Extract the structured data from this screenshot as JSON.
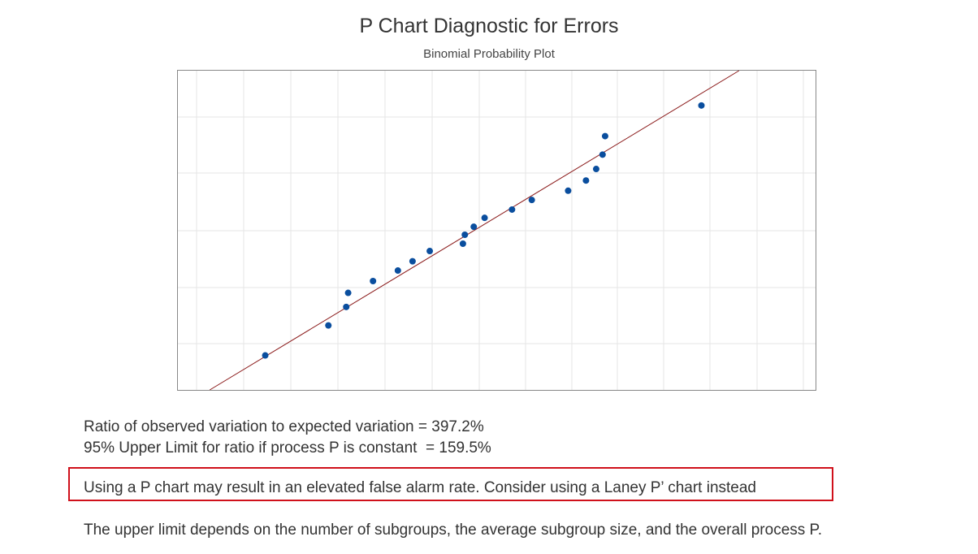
{
  "chart_data": {
    "type": "scatter",
    "title": "P Chart Diagnostic for Errors",
    "subtitle": "Binomial Probability Plot",
    "grid": true,
    "colors": {
      "points": "#0a4e9e",
      "fit_line": "#8b1a1a",
      "grid": "#e6e6e6",
      "frame": "#888888"
    },
    "xlim": [
      0,
      1
    ],
    "ylim": [
      0,
      1
    ],
    "fit_line": [
      [
        0.05,
        0.0
      ],
      [
        0.88,
        1.0
      ]
    ],
    "points": [
      {
        "x": 0.137,
        "y": 0.108
      },
      {
        "x": 0.236,
        "y": 0.202
      },
      {
        "x": 0.264,
        "y": 0.26
      },
      {
        "x": 0.267,
        "y": 0.304
      },
      {
        "x": 0.306,
        "y": 0.341
      },
      {
        "x": 0.345,
        "y": 0.374
      },
      {
        "x": 0.368,
        "y": 0.403
      },
      {
        "x": 0.395,
        "y": 0.435
      },
      {
        "x": 0.447,
        "y": 0.458
      },
      {
        "x": 0.45,
        "y": 0.486
      },
      {
        "x": 0.464,
        "y": 0.511
      },
      {
        "x": 0.481,
        "y": 0.539
      },
      {
        "x": 0.524,
        "y": 0.565
      },
      {
        "x": 0.555,
        "y": 0.595
      },
      {
        "x": 0.612,
        "y": 0.624
      },
      {
        "x": 0.64,
        "y": 0.656
      },
      {
        "x": 0.656,
        "y": 0.692
      },
      {
        "x": 0.666,
        "y": 0.737
      },
      {
        "x": 0.67,
        "y": 0.795
      },
      {
        "x": 0.821,
        "y": 0.891
      }
    ]
  },
  "stats": {
    "line1": "Ratio of observed variation to expected variation = 397.2%",
    "line2": "95% Upper Limit for ratio if process P is constant  = 159.5%"
  },
  "warning": {
    "text": "Using a P chart may result in an elevated false alarm rate. Consider using a Laney P’ chart instead",
    "border_color": "#d0101b"
  },
  "note": "The upper limit depends on the number of subgroups, the average subgroup size, and the overall process P."
}
